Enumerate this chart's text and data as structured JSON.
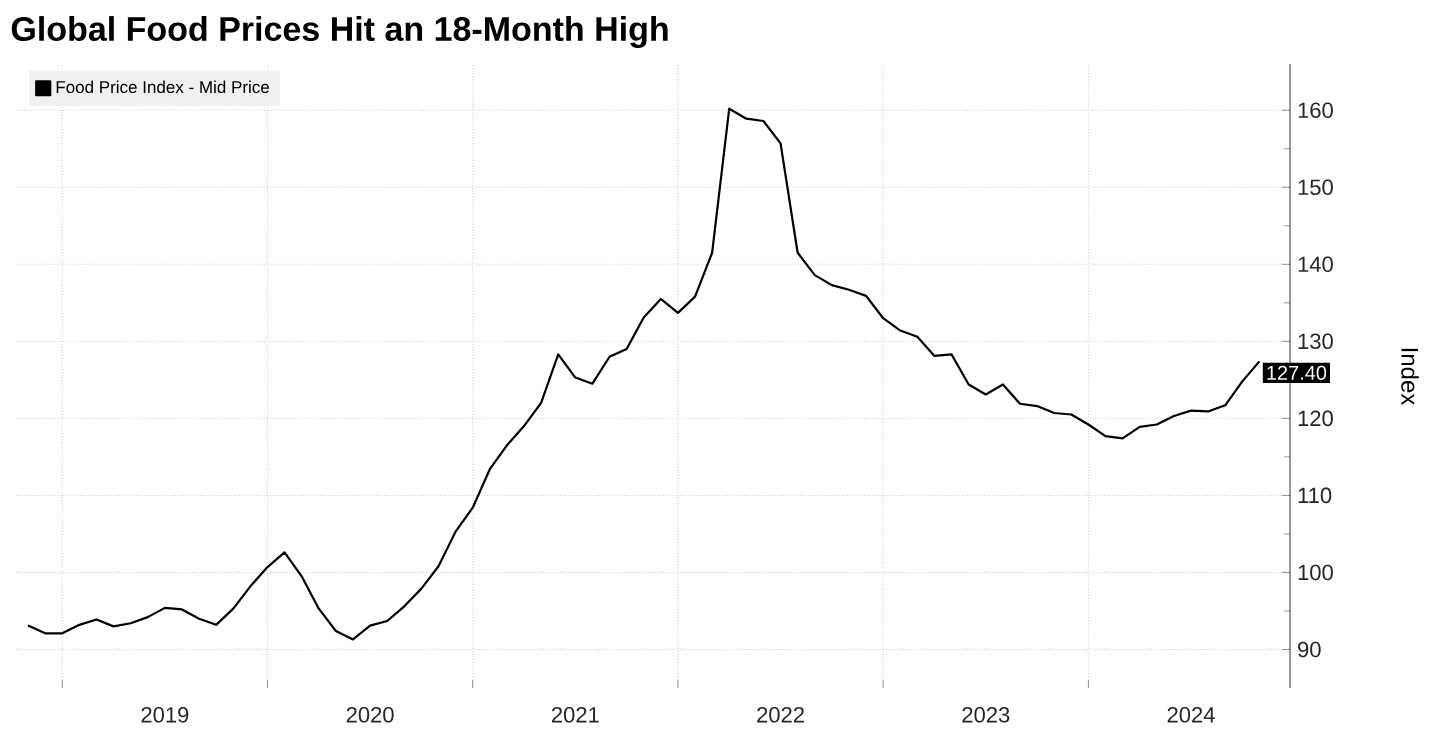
{
  "chart_data": {
    "type": "line",
    "title": "Global Food Prices Hit an 18-Month High",
    "ylabel": "Index",
    "x": [
      "2018-11",
      "2018-12",
      "2019-01",
      "2019-02",
      "2019-03",
      "2019-04",
      "2019-05",
      "2019-06",
      "2019-07",
      "2019-08",
      "2019-09",
      "2019-10",
      "2019-11",
      "2019-12",
      "2020-01",
      "2020-02",
      "2020-03",
      "2020-04",
      "2020-05",
      "2020-06",
      "2020-07",
      "2020-08",
      "2020-09",
      "2020-10",
      "2020-11",
      "2020-12",
      "2021-01",
      "2021-02",
      "2021-03",
      "2021-04",
      "2021-05",
      "2021-06",
      "2021-07",
      "2021-08",
      "2021-09",
      "2021-10",
      "2021-11",
      "2021-12",
      "2022-01",
      "2022-02",
      "2022-03",
      "2022-04",
      "2022-05",
      "2022-06",
      "2022-07",
      "2022-08",
      "2022-09",
      "2022-10",
      "2022-11",
      "2022-12",
      "2023-01",
      "2023-02",
      "2023-03",
      "2023-04",
      "2023-05",
      "2023-06",
      "2023-07",
      "2023-08",
      "2023-09",
      "2023-10",
      "2023-11",
      "2023-12",
      "2024-01",
      "2024-02",
      "2024-03",
      "2024-04",
      "2024-05",
      "2024-06",
      "2024-07",
      "2024-08",
      "2024-09",
      "2024-10",
      "2024-11"
    ],
    "series": [
      {
        "name": "Food Price Index - Mid Price",
        "color": "#000000",
        "values": [
          93.1,
          92.1,
          92.1,
          93.2,
          93.9,
          93.0,
          93.4,
          94.2,
          95.4,
          95.2,
          94.0,
          93.2,
          95.3,
          98.2,
          100.7,
          102.6,
          99.5,
          95.3,
          92.4,
          91.3,
          93.1,
          93.7,
          95.6,
          97.9,
          100.8,
          105.3,
          108.4,
          113.4,
          116.5,
          119.0,
          122.0,
          128.3,
          125.3,
          124.5,
          128.0,
          129.0,
          133.1,
          135.5,
          133.7,
          135.8,
          141.5,
          160.2,
          158.9,
          158.6,
          155.7,
          141.5,
          138.6,
          137.3,
          136.7,
          135.9,
          133.0,
          131.4,
          130.6,
          128.1,
          128.3,
          124.4,
          123.1,
          124.4,
          121.9,
          121.6,
          120.7,
          120.5,
          119.2,
          117.7,
          117.4,
          118.9,
          119.2,
          120.3,
          121.0,
          120.9,
          121.7,
          124.8,
          127.4
        ],
        "value_labels": [
          null,
          null,
          null,
          null,
          null,
          null,
          null,
          null,
          null,
          null,
          null,
          null,
          null,
          null,
          null,
          null,
          null,
          null,
          null,
          null,
          null,
          null,
          null,
          null,
          null,
          null,
          null,
          null,
          null,
          null,
          null,
          null,
          null,
          null,
          null,
          null,
          null,
          null,
          null,
          null,
          null,
          null,
          null,
          null,
          null,
          null,
          null,
          null,
          null,
          null,
          null,
          null,
          null,
          null,
          null,
          null,
          null,
          null,
          null,
          null,
          null,
          null,
          null,
          null,
          null,
          null,
          null,
          null,
          null,
          null,
          null,
          null,
          "127.40"
        ]
      }
    ],
    "xlim": [
      "2018-10-10",
      "2024-12-25"
    ],
    "ylim": [
      85,
      166
    ],
    "xticks": [
      {
        "value": "2019-01-01",
        "label": null
      },
      {
        "value": "2019-07-01",
        "label": "2019"
      },
      {
        "value": "2020-01-01",
        "label": null
      },
      {
        "value": "2020-07-01",
        "label": "2020"
      },
      {
        "value": "2021-01-01",
        "label": null
      },
      {
        "value": "2021-07-01",
        "label": "2021"
      },
      {
        "value": "2022-01-01",
        "label": null
      },
      {
        "value": "2022-07-01",
        "label": "2022"
      },
      {
        "value": "2023-01-01",
        "label": null
      },
      {
        "value": "2023-07-01",
        "label": "2023"
      },
      {
        "value": "2024-01-01",
        "label": null
      },
      {
        "value": "2024-07-01",
        "label": "2024"
      }
    ],
    "yticks": [
      90,
      100,
      110,
      120,
      130,
      140,
      150,
      160
    ],
    "grid": true,
    "legend": "top left"
  }
}
